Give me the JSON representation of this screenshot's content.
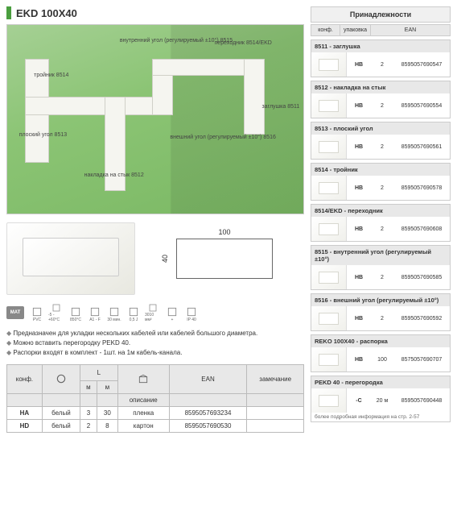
{
  "title": "EKD 100X40",
  "hero_labels": {
    "inner_angle": "внутренний угол\n(регулируемый ±10°)\n8515",
    "tee": "тройник\n8514",
    "adapter": "переходник\n8514/EKD",
    "end_cap": "заглушка\n8511",
    "flat_angle": "плоский угол\n8513",
    "outer_angle": "внешний угол\n(регулируемый ±10°)\n8516",
    "joint": "накладка на стык\n8512"
  },
  "dimensions": {
    "width": "100",
    "height": "40"
  },
  "mat_label": "MAT",
  "mat_specs": [
    "PVC",
    "-5 - +60°C",
    "850°C",
    "A1 - F",
    "30 мин.",
    "0,5 J",
    "3010 мм²",
    "+",
    "IP 40"
  ],
  "bullets": [
    "Предназначен для укладки нескольких кабелей или кабелей большого диаметра.",
    "Можно вставить перегородку PEKD 40.",
    "Распорки входят в комплект - 1шт. на 1м кабель-канала."
  ],
  "main_table": {
    "headers": {
      "conf": "конф.",
      "color": "",
      "L_m": "м",
      "L_pack_m": "м",
      "desc": "описание",
      "ean": "EAN",
      "note": "замечание",
      "L": "L"
    },
    "rows": [
      {
        "conf": "HA",
        "color": "белый",
        "L_m": "3",
        "L_pack_m": "30",
        "desc": "пленка",
        "ean": "8595057693234",
        "note": ""
      },
      {
        "conf": "HD",
        "color": "белый",
        "L_m": "2",
        "L_pack_m": "8",
        "desc": "картон",
        "ean": "8595057690530",
        "note": ""
      }
    ]
  },
  "accessories": {
    "title": "Принадлежности",
    "headers": {
      "conf": "конф.",
      "pack": "упаковка",
      "ean": "EAN"
    },
    "items": [
      {
        "name": "8511 - заглушка",
        "conf": "HB",
        "pack": "2",
        "ean": "8595057690547"
      },
      {
        "name": "8512 - накладка на стык",
        "conf": "HB",
        "pack": "2",
        "ean": "8595057690554"
      },
      {
        "name": "8513 - плоский угол",
        "conf": "HB",
        "pack": "2",
        "ean": "8595057690561"
      },
      {
        "name": "8514 - тройник",
        "conf": "HB",
        "pack": "2",
        "ean": "8595057690578"
      },
      {
        "name": "8514/EKD - переходник",
        "conf": "HB",
        "pack": "2",
        "ean": "8595057690608"
      },
      {
        "name": "8515 - внутренний угол (регулируемый ±10°)",
        "conf": "HB",
        "pack": "2",
        "ean": "8595057690585"
      },
      {
        "name": "8516 - внешний угол (регулируемый ±10°)",
        "conf": "HB",
        "pack": "2",
        "ean": "8595057690592"
      },
      {
        "name": "REKO 100X40 - распорка",
        "conf": "HB",
        "pack": "100",
        "ean": "8575057690707"
      },
      {
        "name": "PEKD 40 - перегородка",
        "conf": "-C",
        "pack": "20 м",
        "ean": "8595057690448",
        "note": "более подробная информация на стр. 2-57"
      }
    ]
  }
}
